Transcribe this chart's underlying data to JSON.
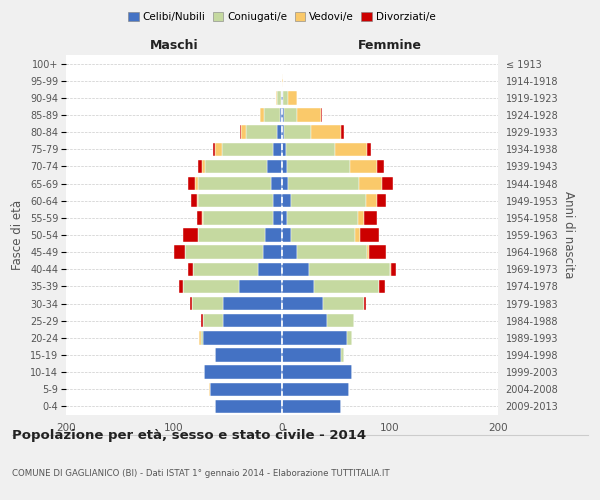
{
  "age_groups": [
    "0-4",
    "5-9",
    "10-14",
    "15-19",
    "20-24",
    "25-29",
    "30-34",
    "35-39",
    "40-44",
    "45-49",
    "50-54",
    "55-59",
    "60-64",
    "65-69",
    "70-74",
    "75-79",
    "80-84",
    "85-89",
    "90-94",
    "95-99",
    "100+"
  ],
  "birth_years": [
    "2009-2013",
    "2004-2008",
    "1999-2003",
    "1994-1998",
    "1989-1993",
    "1984-1988",
    "1979-1983",
    "1974-1978",
    "1969-1973",
    "1964-1968",
    "1959-1963",
    "1954-1958",
    "1949-1953",
    "1944-1948",
    "1939-1943",
    "1934-1938",
    "1929-1933",
    "1924-1928",
    "1919-1923",
    "1914-1918",
    "≤ 1913"
  ],
  "maschi": {
    "celibi": [
      62,
      67,
      72,
      62,
      73,
      55,
      55,
      40,
      22,
      18,
      16,
      8,
      8,
      10,
      14,
      8,
      5,
      2,
      1,
      0,
      0
    ],
    "coniugati": [
      0,
      0,
      0,
      0,
      2,
      18,
      28,
      52,
      60,
      72,
      62,
      65,
      70,
      68,
      57,
      48,
      28,
      15,
      4,
      0,
      0
    ],
    "vedovi": [
      0,
      1,
      0,
      0,
      2,
      0,
      0,
      0,
      0,
      0,
      0,
      1,
      1,
      3,
      3,
      6,
      5,
      3,
      1,
      0,
      0
    ],
    "divorziati": [
      0,
      0,
      0,
      0,
      0,
      2,
      2,
      3,
      5,
      10,
      14,
      5,
      5,
      6,
      4,
      2,
      1,
      0,
      0,
      0,
      0
    ]
  },
  "femmine": {
    "nubili": [
      55,
      62,
      65,
      55,
      60,
      42,
      38,
      30,
      25,
      14,
      8,
      5,
      8,
      6,
      5,
      4,
      2,
      2,
      1,
      0,
      0
    ],
    "coniugate": [
      0,
      0,
      0,
      2,
      5,
      25,
      38,
      60,
      75,
      65,
      60,
      65,
      70,
      65,
      58,
      45,
      25,
      12,
      5,
      0,
      0
    ],
    "vedove": [
      0,
      0,
      0,
      0,
      0,
      0,
      0,
      0,
      1,
      2,
      4,
      6,
      10,
      22,
      25,
      30,
      28,
      22,
      8,
      1,
      0
    ],
    "divorziate": [
      0,
      0,
      0,
      0,
      0,
      0,
      2,
      5,
      5,
      15,
      18,
      12,
      8,
      10,
      6,
      3,
      2,
      1,
      0,
      0,
      0
    ]
  },
  "colors": {
    "celibi": "#4472c4",
    "coniugati": "#c5d9a0",
    "vedovi": "#fac96a",
    "divorziati": "#cc0000"
  },
  "title": "Popolazione per età, sesso e stato civile - 2014",
  "subtitle": "COMUNE DI GAGLIANICO (BI) - Dati ISTAT 1° gennaio 2014 - Elaborazione TUTTITALIA.IT",
  "xlabel_left": "Maschi",
  "xlabel_right": "Femmine",
  "ylabel_left": "Fasce di età",
  "ylabel_right": "Anni di nascita",
  "legend_labels": [
    "Celibi/Nubili",
    "Coniugati/e",
    "Vedovi/e",
    "Divorziati/e"
  ],
  "xlim": 200,
  "bg_color": "#f0f0f0",
  "plot_bg": "#ffffff"
}
